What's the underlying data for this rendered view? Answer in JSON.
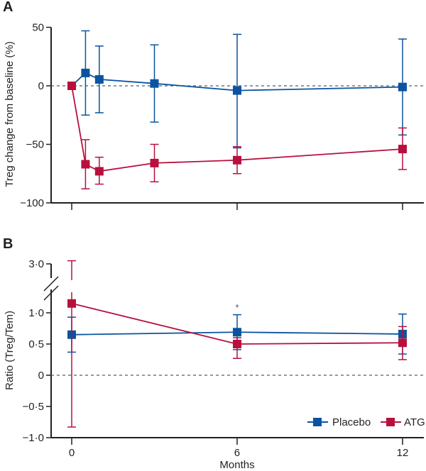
{
  "colors": {
    "placebo": "#0b53a0",
    "atg": "#b8103e",
    "axis": "#231f20",
    "zero_line": "#4a6070"
  },
  "chart_data": [
    {
      "panel": "A",
      "type": "line",
      "ylabel": "Treg change from baseline (%)",
      "xlabel": "",
      "ylim": [
        -100,
        50
      ],
      "xlim": [
        0,
        12
      ],
      "yticks": [
        50,
        0,
        -50,
        -100
      ],
      "ytick_labels": [
        "50",
        "0",
        "−50",
        "−100"
      ],
      "xticks": [
        0,
        6,
        12
      ],
      "reference_line": 0,
      "series": [
        {
          "name": "Placebo",
          "x": [
            0,
            0.5,
            1,
            3,
            6,
            12
          ],
          "values": [
            0,
            11,
            5.5,
            2,
            -4,
            -1
          ],
          "err_upper": [
            0,
            47,
            34,
            35,
            44,
            40
          ],
          "err_lower": [
            0,
            -25,
            -23,
            -31,
            -53,
            -42
          ]
        },
        {
          "name": "ATG",
          "x": [
            0,
            0.5,
            1,
            3,
            6,
            12
          ],
          "values": [
            0,
            -67,
            -73,
            -66,
            -63.5,
            -54
          ],
          "err_upper": [
            0,
            -46,
            -61,
            -50,
            -52,
            -36
          ],
          "err_lower": [
            0,
            -88,
            -84,
            -82,
            -75,
            -71.5
          ]
        }
      ]
    },
    {
      "panel": "B",
      "type": "line",
      "ylabel": "Ratio (Treg/Tem)",
      "xlabel": "Months",
      "ylim": [
        -1.0,
        3.0
      ],
      "y_axis_break": [
        1.25,
        2.75
      ],
      "xlim": [
        0,
        12
      ],
      "yticks": [
        3.0,
        1.0,
        0.5,
        0,
        -0.5,
        -1.0
      ],
      "ytick_labels": [
        "3·0",
        "1·0",
        "0·5",
        "0",
        "−0·5",
        "−1·0"
      ],
      "xticks": [
        0,
        6,
        12
      ],
      "xtick_labels": [
        "0",
        "6",
        "12"
      ],
      "reference_line": 0,
      "annotations": [
        {
          "text": "*",
          "x": 6
        }
      ],
      "legend": {
        "position": "bottom-right",
        "entries": [
          "Placebo",
          "ATG"
        ]
      },
      "series": [
        {
          "name": "Placebo",
          "x": [
            0,
            6,
            12
          ],
          "values": [
            0.65,
            0.69,
            0.66
          ],
          "err_upper": [
            0.93,
            0.97,
            0.98
          ],
          "err_lower": [
            0.37,
            0.41,
            0.34
          ]
        },
        {
          "name": "ATG",
          "x": [
            0,
            6,
            12
          ],
          "values": [
            1.15,
            0.5,
            0.52
          ],
          "err_upper": [
            3.05,
            0.6,
            0.78
          ],
          "err_lower": [
            -0.83,
            0.27,
            0.25
          ]
        }
      ]
    }
  ]
}
